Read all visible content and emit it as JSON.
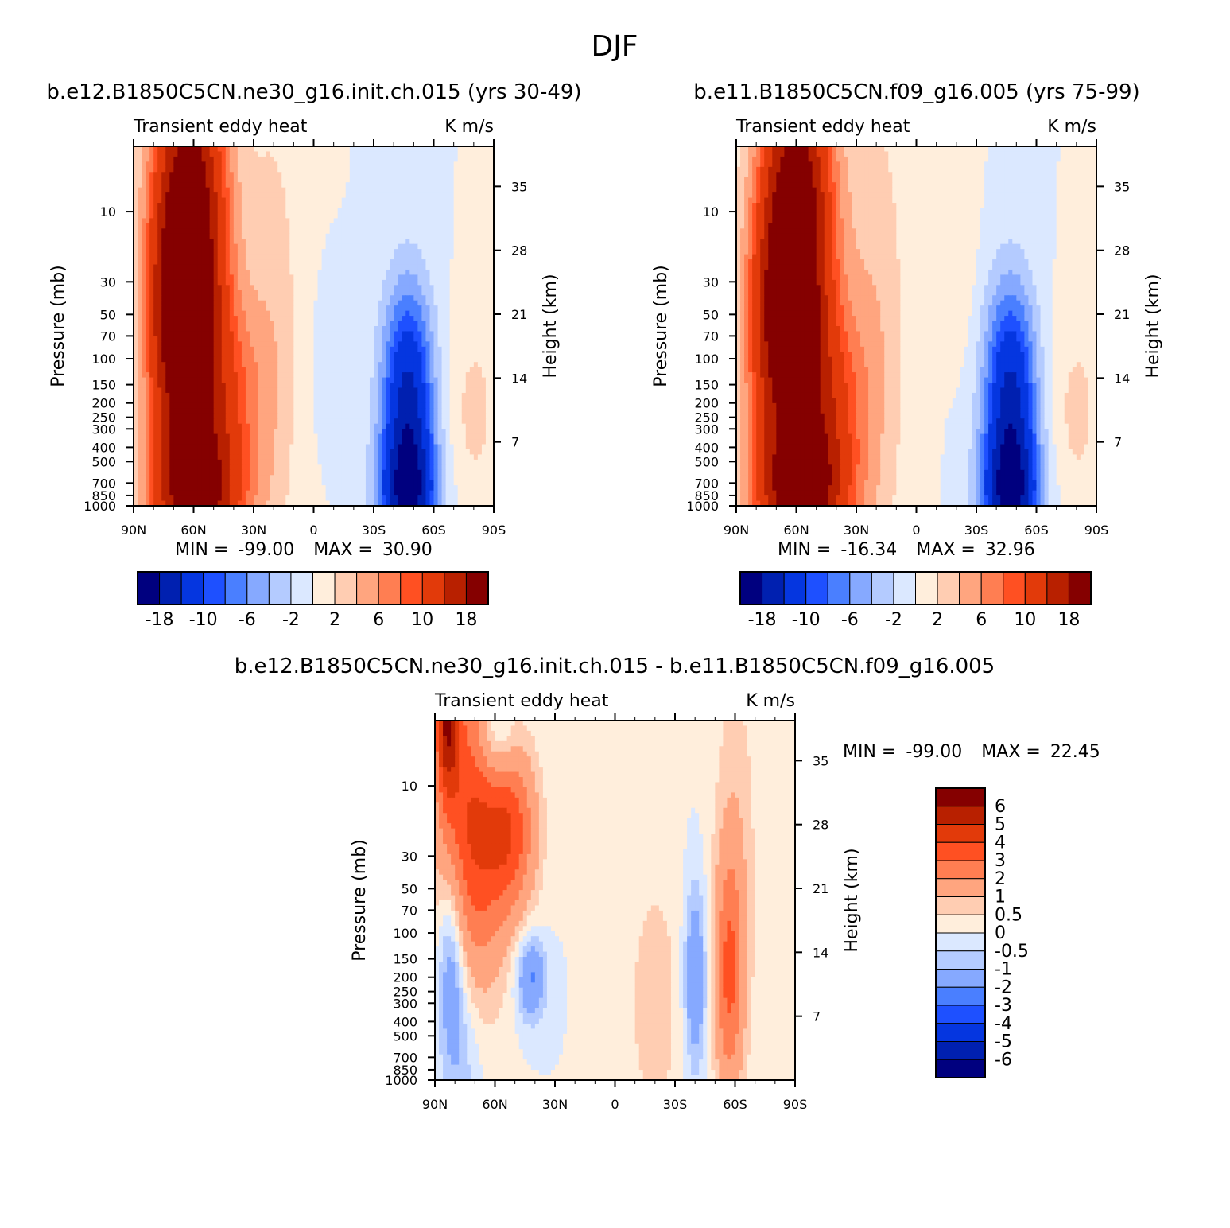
{
  "figure": {
    "title": "DJF"
  },
  "colors": {
    "diverging18": [
      "#00007f",
      "#0020b0",
      "#0536e0",
      "#1e50ff",
      "#4a7fff",
      "#86a9ff",
      "#b4cbff",
      "#dbe8ff",
      "#ffeedc",
      "#ffcdb2",
      "#ffa57f",
      "#ff7e52",
      "#ff5022",
      "#e23a0a",
      "#b82000",
      "#850000"
    ],
    "diff": [
      "#00007f",
      "#0020b0",
      "#0536e0",
      "#1e50ff",
      "#4a7fff",
      "#86a9ff",
      "#b4cbff",
      "#dbe8ff",
      "#ffeedc",
      "#ffcdb2",
      "#ffa57f",
      "#ff7e52",
      "#ff5022",
      "#e23a0a",
      "#b82000",
      "#850000"
    ]
  },
  "chart_data": [
    {
      "type": "heatmap",
      "panel": "top-left",
      "title": "b.e12.B1850C5CN.ne30_g16.init.ch.015 (yrs 30-49)",
      "left_label": "Transient  eddy  heat",
      "right_label": "K  m/s",
      "ylabel": "Pressure  (mb)",
      "y2label": "Height  (km)",
      "x_ticks": [
        "90N",
        "60N",
        "30N",
        "0",
        "30S",
        "60S",
        "90S"
      ],
      "y_ticks": [
        "10",
        "30",
        "50",
        "70",
        "100",
        "150",
        "200",
        "250",
        "300",
        "400",
        "500",
        "700",
        "850",
        "1000"
      ],
      "y2_ticks": [
        "35",
        "28",
        "21",
        "14",
        "7"
      ],
      "stats": {
        "min_label": "MIN  =",
        "min": "-99.00",
        "max_label": "MAX  =",
        "max": "30.90"
      },
      "colorbar_labels": [
        "-18",
        "-10",
        "-6",
        "-2",
        "2",
        "6",
        "10",
        "18"
      ],
      "features": [
        {
          "lat": -62,
          "p": 15,
          "amp": 24,
          "wlat": 13,
          "wlogp": 0.9
        },
        {
          "lat": -58,
          "p": 900,
          "amp": 18,
          "wlat": 16,
          "wlogp": 0.35
        },
        {
          "lat": -45,
          "p": 170,
          "amp": 7,
          "wlat": 14,
          "wlogp": 0.45
        },
        {
          "lat": -70,
          "p": 80,
          "amp": 9,
          "wlat": 10,
          "wlogp": 0.6
        },
        {
          "lat": 47,
          "p": 200,
          "amp": -15,
          "wlat": 9,
          "wlogp": 0.55
        },
        {
          "lat": 47,
          "p": 880,
          "amp": -14,
          "wlat": 10,
          "wlogp": 0.3
        },
        {
          "lat": 80,
          "p": 230,
          "amp": 2.5,
          "wlat": 10,
          "wlogp": 0.5
        },
        {
          "lat": -20,
          "p": 60,
          "amp": 3,
          "wlat": 10,
          "wlogp": 1.2
        },
        {
          "lat": 5,
          "p": 110,
          "amp": -0.8,
          "wlat": 6,
          "wlogp": 0.4
        }
      ]
    },
    {
      "type": "heatmap",
      "panel": "top-right",
      "title": "b.e11.B1850C5CN.f09_g16.005 (yrs 75-99)",
      "left_label": "Transient  eddy  heat",
      "right_label": "K  m/s",
      "ylabel": "Pressure  (mb)",
      "y2label": "Height  (km)",
      "x_ticks": [
        "90N",
        "60N",
        "30N",
        "0",
        "30S",
        "60S",
        "90S"
      ],
      "y_ticks": [
        "10",
        "30",
        "50",
        "70",
        "100",
        "150",
        "200",
        "250",
        "300",
        "400",
        "500",
        "700",
        "850",
        "1000"
      ],
      "y2_ticks": [
        "35",
        "28",
        "21",
        "14",
        "7"
      ],
      "stats": {
        "min_label": "MIN  =",
        "min": "-16.34",
        "max_label": "MAX  =",
        "max": "32.96"
      },
      "colorbar_labels": [
        "-18",
        "-10",
        "-6",
        "-2",
        "2",
        "6",
        "10",
        "18"
      ],
      "features": [
        {
          "lat": -60,
          "p": 15,
          "amp": 24,
          "wlat": 13,
          "wlogp": 0.9
        },
        {
          "lat": -57,
          "p": 900,
          "amp": 19,
          "wlat": 16,
          "wlogp": 0.35
        },
        {
          "lat": -44,
          "p": 190,
          "amp": 8,
          "wlat": 13,
          "wlogp": 0.45
        },
        {
          "lat": -72,
          "p": 80,
          "amp": 9,
          "wlat": 10,
          "wlogp": 0.6
        },
        {
          "lat": 47,
          "p": 200,
          "amp": -15,
          "wlat": 9,
          "wlogp": 0.55
        },
        {
          "lat": 47,
          "p": 880,
          "amp": -14,
          "wlat": 10,
          "wlogp": 0.3
        },
        {
          "lat": 80,
          "p": 230,
          "amp": 2.5,
          "wlat": 10,
          "wlogp": 0.5
        },
        {
          "lat": -20,
          "p": 60,
          "amp": 3.5,
          "wlat": 11,
          "wlogp": 1.2
        },
        {
          "lat": 25,
          "p": 20,
          "amp": 1,
          "wlat": 5,
          "wlogp": 0.6
        }
      ]
    },
    {
      "type": "heatmap",
      "panel": "bottom",
      "title": "b.e12.B1850C5CN.ne30_g16.init.ch.015 - b.e11.B1850C5CN.f09_g16.005",
      "left_label": "Transient  eddy  heat",
      "right_label": "K  m/s",
      "ylabel": "Pressure  (mb)",
      "y2label": "Height  (km)",
      "x_ticks": [
        "90N",
        "60N",
        "30N",
        "0",
        "30S",
        "60S",
        "90S"
      ],
      "y_ticks": [
        "10",
        "30",
        "50",
        "70",
        "100",
        "150",
        "200",
        "250",
        "300",
        "400",
        "500",
        "700",
        "850",
        "1000"
      ],
      "y2_ticks": [
        "35",
        "28",
        "21",
        "14",
        "7"
      ],
      "stats": {
        "min_label": "MIN  =",
        "min": "-99.00",
        "max_label": "MAX  =",
        "max": "22.45"
      },
      "colorbar_labels": [
        "6",
        "5",
        "4",
        "3",
        "2",
        "1",
        "0.5",
        "0",
        "-0.5",
        "-1",
        "-2",
        "-3",
        "-4",
        "-5",
        "-6"
      ],
      "features": [
        {
          "lat": -72,
          "p": 18,
          "amp": 4,
          "wlat": 12,
          "wlogp": 0.8
        },
        {
          "lat": -52,
          "p": 20,
          "amp": 3.2,
          "wlat": 9,
          "wlogp": 0.4
        },
        {
          "lat": -84,
          "p": 3,
          "amp": 5,
          "wlat": 4,
          "wlogp": 0.4
        },
        {
          "lat": -60,
          "p": 5,
          "amp": -2,
          "wlat": 7,
          "wlogp": 0.25
        },
        {
          "lat": -82,
          "p": 150,
          "amp": -2.2,
          "wlat": 5,
          "wlogp": 0.5
        },
        {
          "lat": -42,
          "p": 200,
          "amp": -2.2,
          "wlat": 5,
          "wlogp": 0.2
        },
        {
          "lat": 57,
          "p": 200,
          "amp": 2.8,
          "wlat": 5,
          "wlogp": 0.55
        },
        {
          "lat": 40,
          "p": 200,
          "amp": -2,
          "wlat": 4,
          "wlogp": 0.45
        },
        {
          "lat": 60,
          "p": 30,
          "amp": 0.9,
          "wlat": 8,
          "wlogp": 1.0
        },
        {
          "lat": 20,
          "p": 300,
          "amp": 0.7,
          "wlat": 12,
          "wlogp": 0.8
        },
        {
          "lat": -75,
          "p": 600,
          "amp": -0.9,
          "wlat": 7,
          "wlogp": 0.5
        }
      ]
    }
  ]
}
